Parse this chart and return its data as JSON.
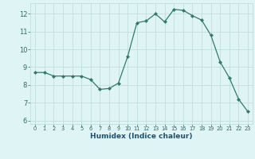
{
  "x": [
    0,
    1,
    2,
    3,
    4,
    5,
    6,
    7,
    8,
    9,
    10,
    11,
    12,
    13,
    14,
    15,
    16,
    17,
    18,
    19,
    20,
    21,
    22,
    23
  ],
  "y": [
    8.7,
    8.7,
    8.5,
    8.5,
    8.5,
    8.5,
    8.3,
    7.75,
    7.8,
    8.1,
    9.6,
    11.5,
    11.6,
    12.0,
    11.55,
    12.25,
    12.2,
    11.9,
    11.65,
    10.8,
    9.3,
    8.4,
    7.2,
    6.5
  ],
  "line_color": "#2d7c6e",
  "marker": "D",
  "marker_size": 2.0,
  "bg_color": "#dff5f5",
  "grid_color": "#c0dede",
  "xlabel": "Humidex (Indice chaleur)",
  "xlabel_color": "#1a5276",
  "tick_color": "#2d6b5e",
  "ylim": [
    5.8,
    12.6
  ],
  "xlim": [
    -0.5,
    23.5
  ],
  "yticks": [
    6,
    7,
    8,
    9,
    10,
    11,
    12
  ],
  "xticks": [
    0,
    1,
    2,
    3,
    4,
    5,
    6,
    7,
    8,
    9,
    10,
    11,
    12,
    13,
    14,
    15,
    16,
    17,
    18,
    19,
    20,
    21,
    22,
    23
  ]
}
